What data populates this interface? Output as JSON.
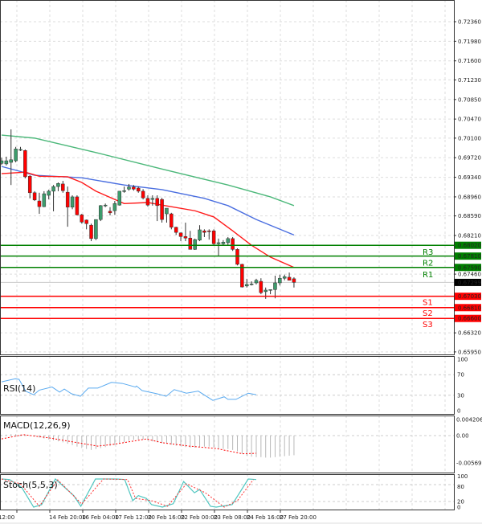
{
  "chart_data": {
    "type": "candlestick",
    "price_axis": {
      "ticks": [
        "0.72360",
        "0.71980",
        "0.71600",
        "0.71230",
        "0.70850",
        "0.70470",
        "0.70100",
        "0.69720",
        "0.69340",
        "0.68960",
        "0.68590",
        "0.68210",
        "0.67460",
        "0.66320",
        "0.65950"
      ],
      "ylim": [
        0.659,
        0.727
      ]
    },
    "time_axis": {
      "ticks": [
        "12:00",
        "14 Feb 20:00",
        "16 Feb 04:00",
        "17 Feb 12:00",
        "20 Feb 16:00",
        "22 Feb 00:00",
        "23 Feb 08:00",
        "24 Feb 16:00",
        "27 Feb 20:00"
      ]
    },
    "grid": true,
    "colors": {
      "bull": "#3c9c6c",
      "bear": "#ff0000",
      "ma_fast": "#ff1a1a",
      "ma_mid": "#4a6ee0",
      "ma_slow": "#4cb87a",
      "resistance": "#008000",
      "support": "#ff0000",
      "current": "#000000",
      "rsi": "#5aaaf0",
      "stoch_main": "#4fc6c0",
      "stoch_signal": "#ff3030",
      "macd_hist": "#b8b8b8",
      "macd_signal": "#ff0000"
    },
    "candles": [
      [
        0.6961,
        0.6972,
        0.6958,
        0.6966
      ],
      [
        0.696,
        0.6974,
        0.6957,
        0.6966
      ],
      [
        0.6963,
        0.7027,
        0.6919,
        0.6968
      ],
      [
        0.6966,
        0.6993,
        0.6963,
        0.6989
      ],
      [
        0.6988,
        0.6993,
        0.6985,
        0.6988
      ],
      [
        0.6986,
        0.6988,
        0.6932,
        0.6935
      ],
      [
        0.6936,
        0.6938,
        0.6893,
        0.6904
      ],
      [
        0.6904,
        0.6907,
        0.6888,
        0.689
      ],
      [
        0.6888,
        0.6904,
        0.6863,
        0.6877
      ],
      [
        0.6877,
        0.6907,
        0.6876,
        0.6902
      ],
      [
        0.6899,
        0.691,
        0.6891,
        0.6907
      ],
      [
        0.6907,
        0.6919,
        0.6868,
        0.6916
      ],
      [
        0.6916,
        0.6924,
        0.6907,
        0.6922
      ],
      [
        0.6921,
        0.6927,
        0.6904,
        0.6908
      ],
      [
        0.6905,
        0.6916,
        0.6838,
        0.6876
      ],
      [
        0.6876,
        0.6899,
        0.6872,
        0.6896
      ],
      [
        0.6896,
        0.6899,
        0.686,
        0.6861
      ],
      [
        0.6861,
        0.6863,
        0.6844,
        0.6847
      ],
      [
        0.6851,
        0.6852,
        0.6833,
        0.6844
      ],
      [
        0.6841,
        0.6844,
        0.681,
        0.6815
      ],
      [
        0.6815,
        0.6852,
        0.6812,
        0.6852
      ],
      [
        0.6852,
        0.688,
        0.6849,
        0.6879
      ],
      [
        0.6879,
        0.6883,
        0.6876,
        0.688
      ],
      [
        0.6868,
        0.6876,
        0.686,
        0.6865
      ],
      [
        0.6869,
        0.6888,
        0.6861,
        0.6883
      ],
      [
        0.688,
        0.6907,
        0.6879,
        0.6907
      ],
      [
        0.6907,
        0.6916,
        0.6904,
        0.6908
      ],
      [
        0.6911,
        0.6921,
        0.6908,
        0.6915
      ],
      [
        0.6915,
        0.6919,
        0.6908,
        0.6911
      ],
      [
        0.6913,
        0.6916,
        0.6904,
        0.6907
      ],
      [
        0.6907,
        0.6911,
        0.6891,
        0.6894
      ],
      [
        0.6893,
        0.6899,
        0.6877,
        0.688
      ],
      [
        0.6891,
        0.6899,
        0.6879,
        0.6893
      ],
      [
        0.6893,
        0.6899,
        0.6849,
        0.6879
      ],
      [
        0.6891,
        0.6894,
        0.6846,
        0.6852
      ],
      [
        0.6863,
        0.6874,
        0.6846,
        0.6874
      ],
      [
        0.6863,
        0.6865,
        0.6833,
        0.6837
      ],
      [
        0.6837,
        0.6838,
        0.6822,
        0.6827
      ],
      [
        0.6826,
        0.6827,
        0.681,
        0.6819
      ],
      [
        0.6819,
        0.6846,
        0.681,
        0.6816
      ],
      [
        0.6816,
        0.683,
        0.6794,
        0.6794
      ],
      [
        0.6794,
        0.6815,
        0.6793,
        0.6813
      ],
      [
        0.6812,
        0.6841,
        0.681,
        0.6832
      ],
      [
        0.683,
        0.6833,
        0.6818,
        0.6827
      ],
      [
        0.683,
        0.6833,
        0.6813,
        0.6829
      ],
      [
        0.683,
        0.6833,
        0.6802,
        0.6805
      ],
      [
        0.6805,
        0.6815,
        0.6782,
        0.6807
      ],
      [
        0.6805,
        0.6812,
        0.6802,
        0.6808
      ],
      [
        0.6807,
        0.6818,
        0.6802,
        0.6815
      ],
      [
        0.6815,
        0.6818,
        0.6791,
        0.6794
      ],
      [
        0.6794,
        0.6796,
        0.6763,
        0.6765
      ],
      [
        0.6765,
        0.6766,
        0.672,
        0.6721
      ],
      [
        0.6723,
        0.6737,
        0.672,
        0.6726
      ],
      [
        0.6727,
        0.6732,
        0.6724,
        0.6727
      ],
      [
        0.6729,
        0.6737,
        0.6726,
        0.6734
      ],
      [
        0.6732,
        0.6738,
        0.6707,
        0.671
      ],
      [
        0.6712,
        0.672,
        0.6698,
        0.6715
      ],
      [
        0.6715,
        0.6716,
        0.6707,
        0.6716
      ],
      [
        0.6716,
        0.6743,
        0.6699,
        0.6729
      ],
      [
        0.6729,
        0.6745,
        0.6724,
        0.6738
      ],
      [
        0.6738,
        0.6745,
        0.6734,
        0.6741
      ],
      [
        0.674,
        0.6749,
        0.6734,
        0.6734
      ],
      [
        0.6737,
        0.674,
        0.672,
        0.673
      ]
    ],
    "moving_averages": [
      {
        "key": "ma_slow",
        "points": [
          [
            0,
            0.7016
          ],
          [
            7,
            0.701
          ],
          [
            20,
            0.6982
          ],
          [
            34,
            0.695
          ],
          [
            48,
            0.6919
          ],
          [
            57,
            0.6896
          ],
          [
            62,
            0.6879
          ]
        ]
      },
      {
        "key": "ma_mid",
        "points": [
          [
            0,
            0.6955
          ],
          [
            7,
            0.6938
          ],
          [
            17,
            0.6933
          ],
          [
            26,
            0.6919
          ],
          [
            34,
            0.691
          ],
          [
            43,
            0.6893
          ],
          [
            48,
            0.6879
          ],
          [
            54,
            0.6852
          ],
          [
            62,
            0.6822
          ]
        ]
      },
      {
        "key": "ma_fast",
        "points": [
          [
            0,
            0.6941
          ],
          [
            5,
            0.6944
          ],
          [
            8,
            0.6936
          ],
          [
            14,
            0.6935
          ],
          [
            17,
            0.6924
          ],
          [
            20,
            0.6907
          ],
          [
            26,
            0.6883
          ],
          [
            31,
            0.6885
          ],
          [
            34,
            0.688
          ],
          [
            41,
            0.6869
          ],
          [
            45,
            0.6857
          ],
          [
            49,
            0.683
          ],
          [
            53,
            0.6802
          ],
          [
            57,
            0.6779
          ],
          [
            62,
            0.6759
          ]
        ]
      }
    ],
    "levels": [
      {
        "name": "R3",
        "value": "0.68020",
        "type": "resistance"
      },
      {
        "name": "R2",
        "value": "0.67810",
        "type": "resistance"
      },
      {
        "name": "R1",
        "value": "0.67590",
        "type": "resistance"
      },
      {
        "name": "S1",
        "value": "0.67030",
        "type": "support"
      },
      {
        "name": "S2",
        "value": "0.66810",
        "type": "support"
      },
      {
        "name": "S3",
        "value": "0.66600",
        "type": "support"
      }
    ],
    "current_price": "0.67299",
    "rsi": {
      "title": "RSI(14)",
      "ticks": [
        "100",
        "70",
        "30",
        "0"
      ],
      "points": [
        [
          0,
          56
        ],
        [
          2.9,
          62
        ],
        [
          3.7,
          61
        ],
        [
          5.1,
          38
        ],
        [
          6.8,
          31
        ],
        [
          8,
          40
        ],
        [
          10.7,
          46
        ],
        [
          12.3,
          36
        ],
        [
          13.3,
          42
        ],
        [
          14.8,
          33
        ],
        [
          16.7,
          28
        ],
        [
          18.4,
          44
        ],
        [
          20.4,
          44
        ],
        [
          23.3,
          55
        ],
        [
          25.6,
          53
        ],
        [
          28.4,
          46
        ],
        [
          28.6,
          48
        ],
        [
          29.8,
          39
        ],
        [
          32.9,
          33
        ],
        [
          34.9,
          28
        ],
        [
          36.6,
          41
        ],
        [
          39.2,
          34
        ],
        [
          41.7,
          38
        ],
        [
          44.8,
          20
        ],
        [
          47.2,
          27
        ],
        [
          48,
          22
        ],
        [
          49.7,
          22
        ],
        [
          52.3,
          34
        ],
        [
          54,
          31
        ]
      ]
    },
    "macd": {
      "title": "MACD(12,26,9)",
      "ticks": [
        "0.004206",
        "0.00",
        "-0.005698"
      ],
      "ylim": [
        -0.005698,
        0.004206
      ],
      "histogram": [
        0.0001,
        0.0002,
        0.0003,
        0.0003,
        0.0002,
        0.0001,
        0,
        -0.0002,
        -0.0004,
        -0.0006,
        -0.0008,
        -0.001,
        -0.0012,
        -0.0014,
        -0.0017,
        -0.002,
        -0.0023,
        -0.0026,
        -0.0028,
        -0.003,
        -0.0028,
        -0.0026,
        -0.0024,
        -0.0022,
        -0.002,
        -0.0017,
        -0.0014,
        -0.0011,
        -0.0009,
        -0.0008,
        -0.0008,
        -0.001,
        -0.0012,
        -0.0014,
        -0.0016,
        -0.0017,
        -0.0019,
        -0.0021,
        -0.0022,
        -0.0024,
        -0.0025,
        -0.0025,
        -0.0024,
        -0.0023,
        -0.0023,
        -0.0025,
        -0.0027,
        -0.0028,
        -0.0028,
        -0.003,
        -0.0033,
        -0.0038,
        -0.0042,
        -0.0044,
        -0.0045,
        -0.0045,
        -0.0046,
        -0.0046,
        -0.0045,
        -0.0044,
        -0.0043,
        -0.0042,
        -0.0041
      ],
      "signal": [
        [
          0,
          -0.0007
        ],
        [
          4.6,
          0.0002
        ],
        [
          10.2,
          -0.0005
        ],
        [
          20.4,
          -0.0022
        ],
        [
          23.9,
          -0.0018
        ],
        [
          30.7,
          -0.0007
        ],
        [
          34.1,
          -0.0015
        ],
        [
          39.8,
          -0.0022
        ],
        [
          45.5,
          -0.0027
        ],
        [
          51.1,
          -0.0038
        ],
        [
          54,
          -0.0037
        ]
      ]
    },
    "stoch": {
      "title": "Stoch(5,5,3)",
      "ticks": [
        "100",
        "80",
        "20",
        "0"
      ],
      "main": [
        [
          0,
          100
        ],
        [
          1.7,
          98
        ],
        [
          4.3,
          69
        ],
        [
          6.8,
          0
        ],
        [
          8.5,
          9
        ],
        [
          11.4,
          100
        ],
        [
          15.3,
          41
        ],
        [
          16.8,
          3
        ],
        [
          19.9,
          100
        ],
        [
          24.4,
          100
        ],
        [
          26.1,
          98
        ],
        [
          27.8,
          23
        ],
        [
          29,
          41
        ],
        [
          30.7,
          31
        ],
        [
          31.8,
          9
        ],
        [
          34.1,
          0
        ],
        [
          36.4,
          12
        ],
        [
          38.6,
          91
        ],
        [
          40.9,
          51
        ],
        [
          42,
          63
        ],
        [
          44.3,
          3
        ],
        [
          45.5,
          0
        ],
        [
          48.9,
          9
        ],
        [
          52.3,
          100
        ],
        [
          54,
          98
        ]
      ],
      "signal": [
        [
          0,
          100
        ],
        [
          4,
          83
        ],
        [
          8,
          3
        ],
        [
          11.9,
          97
        ],
        [
          17,
          11
        ],
        [
          21.6,
          100
        ],
        [
          26.7,
          98
        ],
        [
          28.4,
          31
        ],
        [
          31.8,
          23
        ],
        [
          35.2,
          3
        ],
        [
          39.2,
          83
        ],
        [
          43.2,
          51
        ],
        [
          47.2,
          0
        ],
        [
          50,
          23
        ],
        [
          53.4,
          98
        ]
      ]
    }
  }
}
